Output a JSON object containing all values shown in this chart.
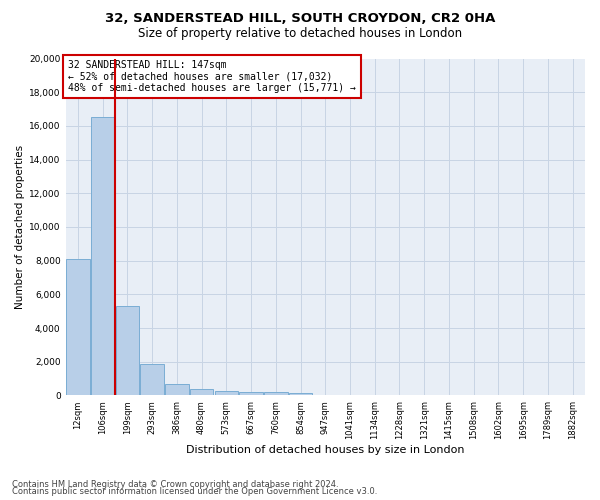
{
  "title_line1": "32, SANDERSTEAD HILL, SOUTH CROYDON, CR2 0HA",
  "title_line2": "Size of property relative to detached houses in London",
  "xlabel": "Distribution of detached houses by size in London",
  "ylabel": "Number of detached properties",
  "footnote_line1": "Contains HM Land Registry data © Crown copyright and database right 2024.",
  "footnote_line2": "Contains public sector information licensed under the Open Government Licence v3.0.",
  "annotation_line1": "32 SANDERSTEAD HILL: 147sqm",
  "annotation_line2": "← 52% of detached houses are smaller (17,032)",
  "annotation_line3": "48% of semi-detached houses are larger (15,771) →",
  "property_size_bin": 1,
  "bar_color": "#b8cfe8",
  "bar_edge_color": "#7aadd4",
  "redline_color": "#cc0000",
  "annotation_box_color": "#cc0000",
  "grid_color": "#c8d4e4",
  "background_color": "#e8eef6",
  "categories": [
    "12sqm",
    "106sqm",
    "199sqm",
    "293sqm",
    "386sqm",
    "480sqm",
    "573sqm",
    "667sqm",
    "760sqm",
    "854sqm",
    "947sqm",
    "1041sqm",
    "1134sqm",
    "1228sqm",
    "1321sqm",
    "1415sqm",
    "1508sqm",
    "1602sqm",
    "1695sqm",
    "1789sqm",
    "1882sqm"
  ],
  "bar_heights": [
    8100,
    16500,
    5300,
    1850,
    680,
    380,
    290,
    220,
    200,
    130,
    0,
    0,
    0,
    0,
    0,
    0,
    0,
    0,
    0,
    0,
    0
  ],
  "ylim": [
    0,
    20000
  ],
  "yticks": [
    0,
    2000,
    4000,
    6000,
    8000,
    10000,
    12000,
    14000,
    16000,
    18000,
    20000
  ],
  "title_fontsize": 9.5,
  "subtitle_fontsize": 8.5,
  "ylabel_fontsize": 7.5,
  "xlabel_fontsize": 8,
  "tick_fontsize": 6,
  "annotation_fontsize": 7,
  "footnote_fontsize": 6
}
